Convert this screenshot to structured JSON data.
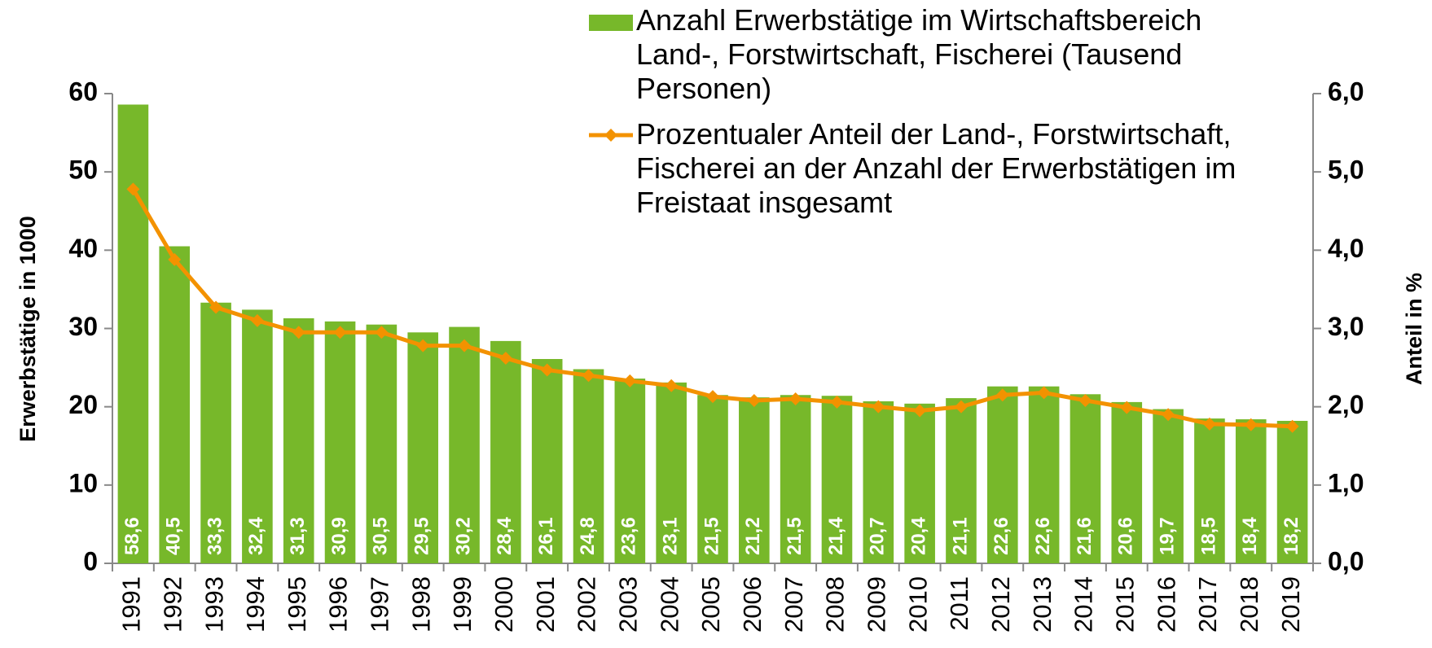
{
  "chart_data": {
    "type": "bar-line",
    "y_label": "Erwerbstätige in 1000",
    "y2_label": "Anteil in %",
    "categories": [
      "1991",
      "1992",
      "1993",
      "1994",
      "1995",
      "1996",
      "1997",
      "1998",
      "1999",
      "2000",
      "2001",
      "2002",
      "2003",
      "2004",
      "2005",
      "2006",
      "2007",
      "2008",
      "2009",
      "2010",
      "2011",
      "2012",
      "2013",
      "2014",
      "2015",
      "2016",
      "2017",
      "2018",
      "2019"
    ],
    "series": [
      {
        "name": "Anzahl Erwerbstätige im Wirtschaftsbereich Land-, Forstwirtschaft, Fischerei (Tausend Personen)",
        "type": "bar",
        "color": "#77b82a",
        "values": [
          58.6,
          40.5,
          33.3,
          32.4,
          31.3,
          30.9,
          30.5,
          29.5,
          30.2,
          28.4,
          26.1,
          24.8,
          23.6,
          23.1,
          21.5,
          21.2,
          21.5,
          21.4,
          20.7,
          20.4,
          21.1,
          22.6,
          22.6,
          21.6,
          20.6,
          19.7,
          18.5,
          18.4,
          18.2
        ],
        "value_labels": [
          "58,6",
          "40,5",
          "33,3",
          "32,4",
          "31,3",
          "30,9",
          "30,5",
          "29,5",
          "30,2",
          "28,4",
          "26,1",
          "24,8",
          "23,6",
          "23,1",
          "21,5",
          "21,2",
          "21,5",
          "21,4",
          "20,7",
          "20,4",
          "21,1",
          "22,6",
          "22,6",
          "21,6",
          "20,6",
          "19,7",
          "18,5",
          "18,4",
          "18,2"
        ]
      },
      {
        "name": "Prozentualer Anteil der Land-, Forstwirtschaft, Fischerei an der Anzahl der Erwerbstätigen im Freistaat insgesamt",
        "type": "line",
        "axis": "y2",
        "color": "#f39200",
        "values": [
          4.78,
          3.88,
          3.27,
          3.1,
          2.95,
          2.95,
          2.95,
          2.78,
          2.78,
          2.62,
          2.47,
          2.4,
          2.33,
          2.27,
          2.13,
          2.08,
          2.1,
          2.06,
          2.0,
          1.95,
          2.0,
          2.15,
          2.18,
          2.08,
          1.99,
          1.9,
          1.78,
          1.77,
          1.75
        ]
      }
    ],
    "ylim": [
      0,
      60
    ],
    "yticks": [
      0,
      10,
      20,
      30,
      40,
      50,
      60
    ],
    "y2lim": [
      0,
      6
    ],
    "y2ticks": [
      {
        "value": 0,
        "label": "0,0"
      },
      {
        "value": 1,
        "label": "1,0"
      },
      {
        "value": 2,
        "label": "2,0"
      },
      {
        "value": 3,
        "label": "3,0"
      },
      {
        "value": 4,
        "label": "4,0"
      },
      {
        "value": 5,
        "label": "5,0"
      },
      {
        "value": 6,
        "label": "6,0"
      }
    ]
  }
}
